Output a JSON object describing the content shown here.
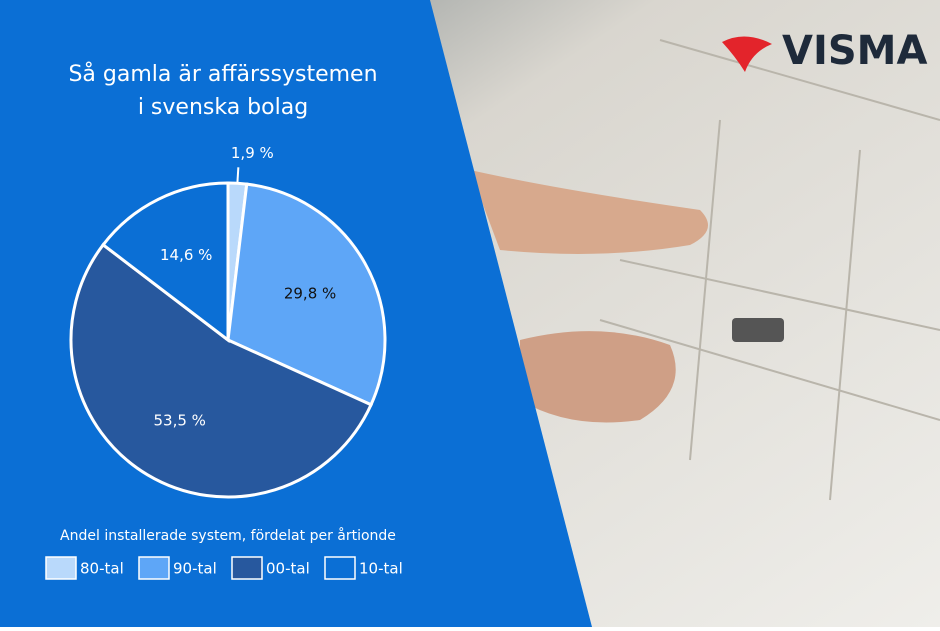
{
  "logo": "VISMA",
  "chart_data": {
    "type": "pie",
    "title_lines": [
      "Så gamla är affärssystemen",
      "i svenska bolag"
    ],
    "legend_title": "Andel installerade system, fördelat per årtionde",
    "categories": [
      "80-tal",
      "90-tal",
      "00-tal",
      "10-tal"
    ],
    "values": [
      1.9,
      29.8,
      53.5,
      14.6
    ],
    "value_labels": [
      "1,9 %",
      "29,8 %",
      "53,5 %",
      "14,6 %"
    ],
    "colors": [
      "#b9d9fb",
      "#5ea6f7",
      "#27589e",
      "#0b6fd5"
    ]
  }
}
